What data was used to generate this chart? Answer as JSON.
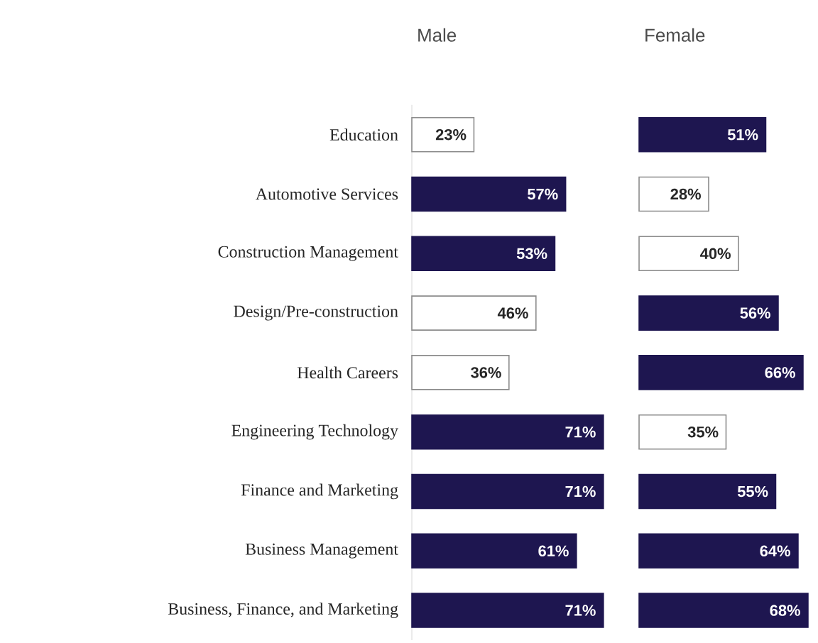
{
  "chart_data": [
    {
      "type": "bar",
      "orientation": "horizontal",
      "title": "Male",
      "tick_labels": "y",
      "categories": [
        "Education",
        "Automotive Services",
        "Construction Management",
        "Design/Pre-construction",
        "Health Careers",
        "Engineering Technology",
        "Finance and Marketing",
        "Business Management",
        "Business, Finance, and Marketing"
      ],
      "values": [
        23,
        57,
        53,
        46,
        36,
        71,
        71,
        61,
        71
      ],
      "value_labels": [
        "23%",
        "57%",
        "53%",
        "46%",
        "36%",
        "71%",
        "71%",
        "61%",
        "71%"
      ],
      "colors": [
        "#ffffff",
        "#1e1650",
        "#1e1650",
        "#ffffff",
        "#ffffff",
        "#1e1650",
        "#1e1650",
        "#1e1650",
        "#1e1650"
      ]
    },
    {
      "type": "bar",
      "orientation": "horizontal",
      "title": "Female",
      "tick_labels": false,
      "categories": [
        null,
        null,
        null,
        null,
        null,
        null,
        null,
        null,
        null
      ],
      "values": [
        51,
        28,
        40,
        56,
        66,
        35,
        55,
        64,
        68
      ],
      "value_labels": [
        "51%",
        "28%",
        "40%",
        "56%",
        "66%",
        "35%",
        "55%",
        "64%",
        "68%"
      ],
      "colors": [
        "#1e1650",
        "#ffffff",
        "#ffffff",
        "#1e1650",
        "#1e1650",
        "#ffffff",
        "#1e1650",
        "#1e1650",
        "#1e1650"
      ]
    }
  ]
}
